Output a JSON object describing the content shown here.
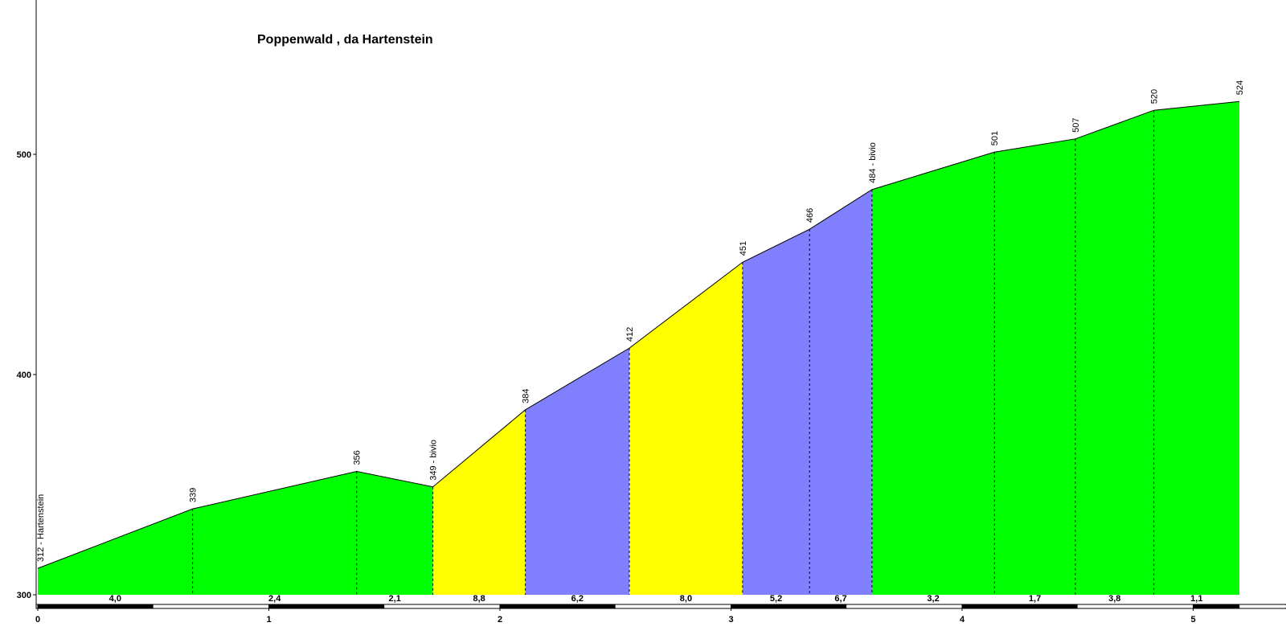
{
  "chart_data": {
    "type": "area",
    "title": "Poppenwald , da Hartenstein",
    "xlim": [
      0,
      5.4
    ],
    "ylim": [
      300,
      570
    ],
    "x_ticks": [
      "0",
      "1",
      "2",
      "3",
      "4",
      "5"
    ],
    "y_ticks": [
      "300",
      "400",
      "500"
    ],
    "points": [
      {
        "x": 0.0,
        "y": 312,
        "label": "312 - Hartenstein"
      },
      {
        "x": 0.67,
        "y": 339,
        "label": "339"
      },
      {
        "x": 1.38,
        "y": 356,
        "label": "356"
      },
      {
        "x": 1.71,
        "y": 349,
        "label": "349 - bivio"
      },
      {
        "x": 2.11,
        "y": 384,
        "label": "384"
      },
      {
        "x": 2.56,
        "y": 412,
        "label": "412"
      },
      {
        "x": 3.05,
        "y": 451,
        "label": "451"
      },
      {
        "x": 3.34,
        "y": 466,
        "label": "466"
      },
      {
        "x": 3.61,
        "y": 484,
        "label": "484 - bivio"
      },
      {
        "x": 4.14,
        "y": 501,
        "label": "501"
      },
      {
        "x": 4.49,
        "y": 507,
        "label": "507"
      },
      {
        "x": 4.83,
        "y": 520,
        "label": "520"
      },
      {
        "x": 5.2,
        "y": 524,
        "label": "524"
      }
    ],
    "gradients": [
      "4,0",
      "2,4",
      "2,1",
      "8,8",
      "6,2",
      "8,0",
      "5,2",
      "6,7",
      "3,2",
      "1,7",
      "3,8",
      "1,1"
    ],
    "segment_colors": [
      "#00ff00",
      "#00ff00",
      "#00ff00",
      "#ffff00",
      "#8080ff",
      "#ffff00",
      "#8080ff",
      "#8080ff",
      "#00ff00",
      "#00ff00",
      "#00ff00",
      "#00ff00"
    ]
  }
}
